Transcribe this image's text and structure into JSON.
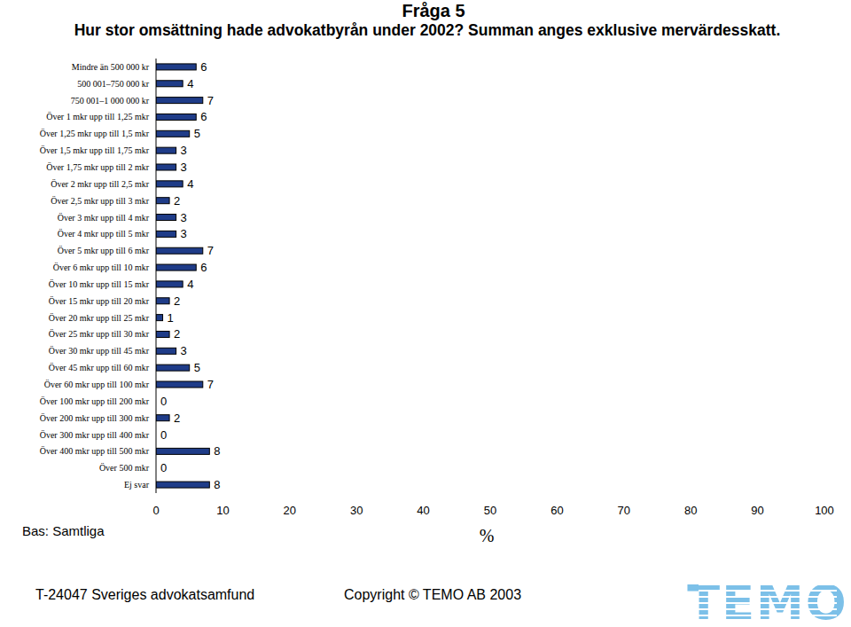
{
  "chart_data": {
    "type": "bar",
    "title": "Fråga 5",
    "subtitle": "Hur stor omsättning hade advokatbyrån under 2002? Summan anges exklusive mervärdesskatt.",
    "orientation": "horizontal",
    "categories": [
      "Mindre än 500 000 kr",
      "500 001–750 000 kr",
      "750 001–1 000 000 kr",
      "Över 1 mkr upp till 1,25 mkr",
      "Över 1,25 mkr upp till 1,5 mkr",
      "Över 1,5 mkr upp till 1,75 mkr",
      "Över 1,75 mkr upp till 2 mkr",
      "Över 2 mkr upp till 2,5 mkr",
      "Över 2,5 mkr upp till 3 mkr",
      "Över 3 mkr upp till 4 mkr",
      "Över 4 mkr upp till 5 mkr",
      "Över 5 mkr upp till 6 mkr",
      "Över 6 mkr upp till 10 mkr",
      "Över 10 mkr upp till 15 mkr",
      "Över 15 mkr upp till 20 mkr",
      "Över 20 mkr upp till 25 mkr",
      "Över 25 mkr upp till 30 mkr",
      "Över 30 mkr upp till 45 mkr",
      "Över 45 mkr upp till 60 mkr",
      "Över 60 mkr upp till 100 mkr",
      "Över 100 mkr upp till 200 mkr",
      "Över 200 mkr upp till 300 mkr",
      "Över 300 mkr upp till 400 mkr",
      "Över 400 mkr upp till 500 mkr",
      "Över 500 mkr",
      "Ej svar"
    ],
    "values": [
      6,
      4,
      7,
      6,
      5,
      3,
      3,
      4,
      2,
      3,
      3,
      7,
      6,
      4,
      2,
      1,
      2,
      3,
      5,
      7,
      0,
      2,
      0,
      8,
      0,
      8
    ],
    "color": "#1f3c88",
    "data_labels": true,
    "grid": false,
    "xlim": [
      0,
      100
    ],
    "xticks": [
      0,
      10,
      20,
      30,
      40,
      50,
      60,
      70,
      80,
      90,
      100
    ],
    "x_label": "%",
    "annotations": [
      "Bas: Samtliga"
    ]
  },
  "footer": {
    "left": "T-24047 Sveriges advokatsamfund",
    "center": "Copyright © TEMO AB 2003",
    "logo": "TEMO"
  }
}
